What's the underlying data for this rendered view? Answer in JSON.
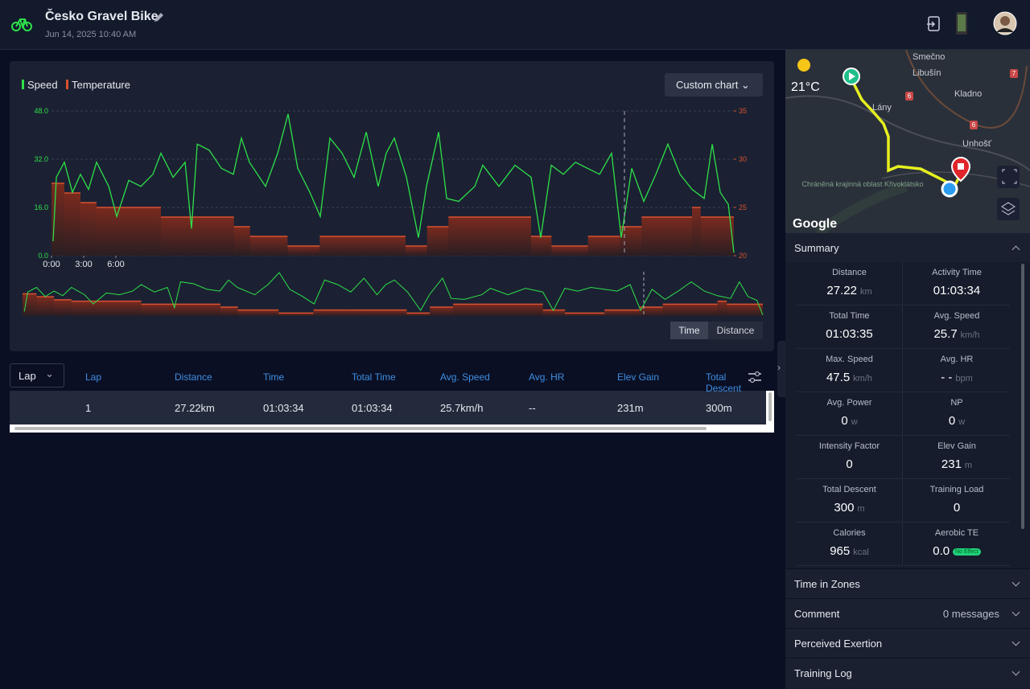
{
  "header": {
    "title": "Česko Gravel Bike",
    "date": "Jun 14, 2025 10:40 AM"
  },
  "chart_data": {
    "type": "line",
    "legend": [
      "Speed",
      "Temperature"
    ],
    "custom_button": "Custom chart",
    "xaxis_toggle": [
      "Time",
      "Distance"
    ],
    "xlim": [
      0,
      63.6
    ],
    "xticks": [
      {
        "value": 0,
        "label": "0:00"
      },
      {
        "value": 3,
        "label": "3:00"
      },
      {
        "value": 6,
        "label": "6:00"
      }
    ],
    "ylim": [
      0,
      48
    ],
    "yticks": [
      {
        "value": 0,
        "label": "0.0"
      },
      {
        "value": 16,
        "label": "16.0"
      },
      {
        "value": 32,
        "label": "32.0"
      },
      {
        "value": 48,
        "label": "48.0"
      }
    ],
    "y2lim": [
      20,
      35
    ],
    "y2ticks": [
      20,
      25,
      30,
      35
    ],
    "grid": true,
    "series": [
      {
        "name": "Speed",
        "color": "#2ee04a",
        "axis": "y",
        "x": [
          0.15,
          0.45,
          1.2,
          1.95,
          2.7,
          3.45,
          4.2,
          5.33,
          6.08,
          7.2,
          8.33,
          9.45,
          10.2,
          11.33,
          12.45,
          13.05,
          13.58,
          14.7,
          15.83,
          16.95,
          17.7,
          18.45,
          19.95,
          21.08,
          22.05,
          22.95,
          24.08,
          25.05,
          25.95,
          27.08,
          28.2,
          29.33,
          30.45,
          31.2,
          31.95,
          33.08,
          34.2,
          34.95,
          36.08,
          36.83,
          37.95,
          39.45,
          40.2,
          41.7,
          43.2,
          44.7,
          45.6,
          46.58,
          47.7,
          48.83,
          49.95,
          51.08,
          52.2,
          53.1,
          54.08,
          55.2,
          56.33,
          57.45,
          58.58,
          59.7,
          60.83,
          61.58,
          62.33,
          63.08,
          63.6
        ],
        "values": [
          4.8,
          26,
          31,
          21,
          27,
          22,
          31,
          23,
          13,
          25,
          23,
          27,
          34,
          26,
          31,
          9,
          37,
          35,
          29,
          27,
          39,
          31,
          23,
          34,
          47,
          29,
          21,
          13,
          39,
          34,
          26,
          41,
          23,
          34,
          39,
          26,
          6,
          23,
          41,
          19,
          18,
          23,
          30,
          23,
          30,
          26,
          6,
          30,
          27,
          31,
          29,
          27,
          34,
          6,
          29,
          18,
          27,
          37,
          27,
          22,
          19,
          37,
          21,
          17,
          1
        ]
      },
      {
        "name": "Temperature",
        "color": "#d9502f",
        "axis": "y2",
        "x": [
          0,
          1.2,
          2.7,
          4.2,
          10.2,
          17,
          18.5,
          22,
          25,
          28.2,
          33,
          35,
          37,
          44.7,
          46.6,
          50,
          53,
          55,
          59.7,
          60.5
        ],
        "values": [
          27.5,
          26.5,
          25.5,
          25,
          24,
          23,
          22,
          21,
          22,
          22,
          21,
          23,
          24,
          22,
          21,
          22,
          23,
          24,
          25,
          24
        ]
      }
    ]
  },
  "table": {
    "lap_select": "Lap",
    "columns": [
      "Lap",
      "Distance",
      "Time",
      "Total Time",
      "Avg. Speed",
      "Avg. HR",
      "Elev Gain",
      "Total Descent"
    ],
    "rows": [
      [
        "1",
        "27.22km",
        "01:03:34",
        "01:03:34",
        "25.7km/h",
        "--",
        "231m",
        "300m"
      ]
    ]
  },
  "map": {
    "temperature": "21°C",
    "places": [
      "Smečno",
      "Libušín",
      "Kladno",
      "Lány",
      "Unhošť",
      "Chráněná krajinná oblast Křivoklátsko"
    ],
    "roads": [
      "7",
      "6",
      "6"
    ],
    "provider": "Google"
  },
  "summary": {
    "title": "Summary",
    "items": [
      {
        "label": "Distance",
        "value": "27.22",
        "unit": "km"
      },
      {
        "label": "Activity Time",
        "value": "01:03:34"
      },
      {
        "label": "Total Time",
        "value": "01:03:35"
      },
      {
        "label": "Avg. Speed",
        "value": "25.7",
        "unit": "km/h"
      },
      {
        "label": "Max. Speed",
        "value": "47.5",
        "unit": "km/h"
      },
      {
        "label": "Avg. HR",
        "value": "- -",
        "unit": "bpm"
      },
      {
        "label": "Avg. Power",
        "value": "0",
        "unit": "w"
      },
      {
        "label": "NP",
        "value": "0",
        "unit": "w"
      },
      {
        "label": "Intensity Factor",
        "value": "0"
      },
      {
        "label": "Elev Gain",
        "value": "231",
        "unit": "m"
      },
      {
        "label": "Total Descent",
        "value": "300",
        "unit": "m"
      },
      {
        "label": "Training Load",
        "value": "0"
      },
      {
        "label": "Calories",
        "value": "965",
        "unit": "kcal"
      },
      {
        "label": "Aerobic TE",
        "value": "0.0",
        "badge": "No Effect"
      }
    ]
  },
  "sections": [
    {
      "title": "Time in Zones"
    },
    {
      "title": "Comment",
      "detail": "0 messages"
    },
    {
      "title": "Perceived Exertion"
    },
    {
      "title": "Training Log"
    }
  ]
}
